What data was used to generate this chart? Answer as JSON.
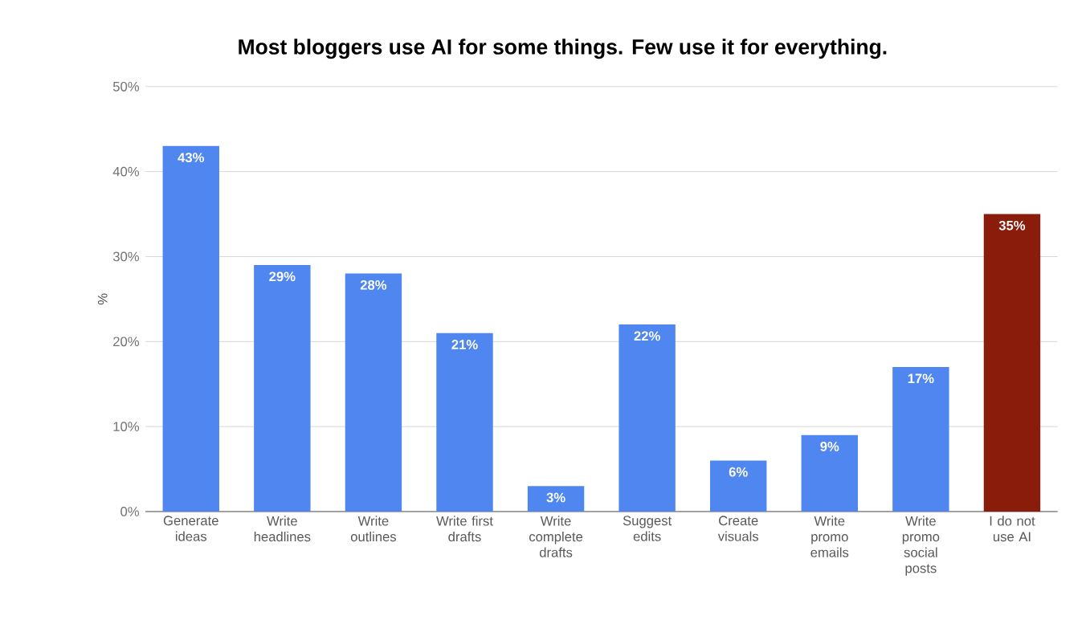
{
  "chart_data": {
    "type": "bar",
    "title": "Most bloggers use AI for some things. Few use it for everything.",
    "ylabel": "%",
    "categories": [
      "Generate ideas",
      "Write headlines",
      "Write outlines",
      "Write first drafts",
      "Write complete drafts",
      "Suggest edits",
      "Create visuals",
      "Write promo emails",
      "Write promo social posts",
      "I do not use AI"
    ],
    "values": [
      43,
      29,
      28,
      21,
      3,
      22,
      6,
      9,
      17,
      35
    ],
    "value_labels": [
      "43%",
      "29%",
      "28%",
      "21%",
      "3%",
      "22%",
      "6%",
      "9%",
      "17%",
      "35%"
    ],
    "colors": [
      "#5086f0",
      "#5086f0",
      "#5086f0",
      "#5086f0",
      "#5086f0",
      "#5086f0",
      "#5086f0",
      "#5086f0",
      "#5086f0",
      "#8a1c0c"
    ],
    "ylim": [
      0,
      50
    ],
    "yticks": [
      {
        "value": 0,
        "label": "0%"
      },
      {
        "value": 10,
        "label": "10%"
      },
      {
        "value": 20,
        "label": "20%"
      },
      {
        "value": 30,
        "label": "30%"
      },
      {
        "value": 40,
        "label": "40%"
      },
      {
        "value": 50,
        "label": "50%"
      }
    ],
    "grid": "y"
  }
}
